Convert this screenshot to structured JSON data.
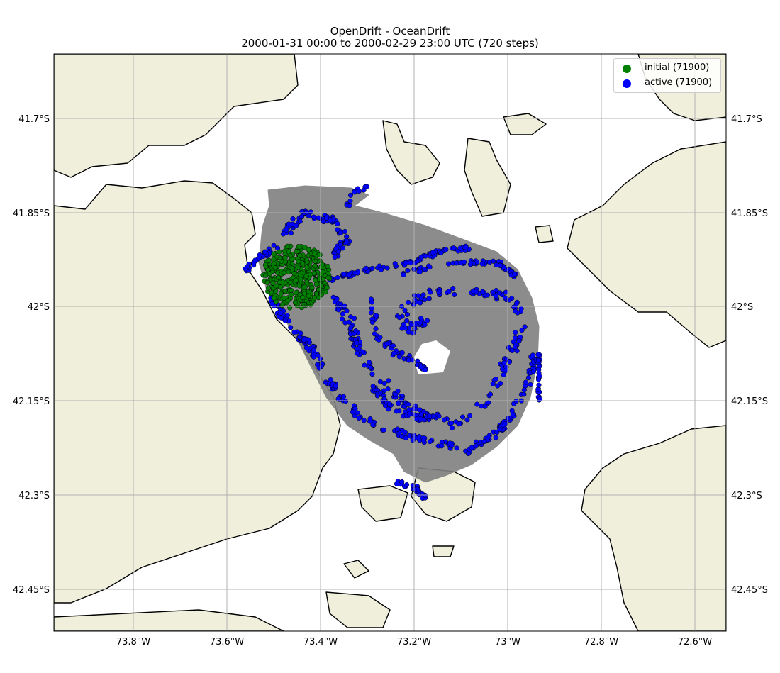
{
  "title": {
    "line1": "OpenDrift - OceanDrift",
    "line2": "2000-01-31 00:00 to 2000-02-29 23:00 UTC (720 steps)"
  },
  "legend": {
    "position": "top-right",
    "items": [
      {
        "label": "initial (71900)",
        "color": "#008000"
      },
      {
        "label": "active (71900)",
        "color": "#0000ff"
      }
    ]
  },
  "axes": {
    "lon_ticks": [
      "73.8°W",
      "73.6°W",
      "73.4°W",
      "73.2°W",
      "73°W",
      "72.8°W",
      "72.6°W"
    ],
    "lat_ticks": [
      "41.7°S",
      "41.85°S",
      "42°S",
      "42.15°S",
      "42.3°S",
      "42.45°S"
    ],
    "lon_range": [
      -73.98,
      -72.54
    ],
    "lat_range": [
      -42.52,
      -41.6
    ],
    "grid": true
  },
  "colors": {
    "land": "#efefdb",
    "sea": "#ffffff",
    "trajectory": "#808080",
    "initial": "#008000",
    "active": "#0000ff",
    "grid": "#b0b0b0"
  },
  "chart_data": {
    "type": "scatter",
    "series": [
      {
        "name": "initial (71900)",
        "count": 71900,
        "center_lon": -73.44,
        "center_lat": -41.94
      },
      {
        "name": "active (71900)",
        "count": 71900
      }
    ]
  }
}
